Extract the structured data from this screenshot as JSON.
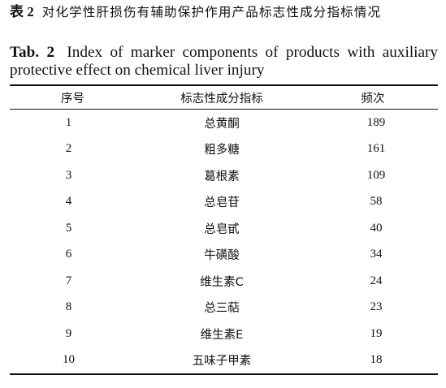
{
  "caption_cn": {
    "label": "表 2",
    "text": "对化学性肝损伤有辅助保护作用产品标志性成分指标情况"
  },
  "caption_en": {
    "label": "Tab. 2",
    "text": "Index of marker components of products with auxiliary protective effect on chemical liver injury"
  },
  "table": {
    "headers": [
      "序号",
      "标志性成分指标",
      "频次"
    ],
    "rows": [
      {
        "no": "1",
        "component": "总黄酮",
        "frequency": "189"
      },
      {
        "no": "2",
        "component": "粗多糖",
        "frequency": "161"
      },
      {
        "no": "3",
        "component": "葛根素",
        "frequency": "109"
      },
      {
        "no": "4",
        "component": "总皂苷",
        "frequency": "58"
      },
      {
        "no": "5",
        "component": "总皂甙",
        "frequency": "40"
      },
      {
        "no": "6",
        "component": "牛磺酸",
        "frequency": "34"
      },
      {
        "no": "7",
        "component": "维生素C",
        "frequency": "24"
      },
      {
        "no": "8",
        "component": "总三萜",
        "frequency": "23"
      },
      {
        "no": "9",
        "component": "维生素E",
        "frequency": "19"
      },
      {
        "no": "10",
        "component": "五味子甲素",
        "frequency": "18"
      }
    ]
  }
}
